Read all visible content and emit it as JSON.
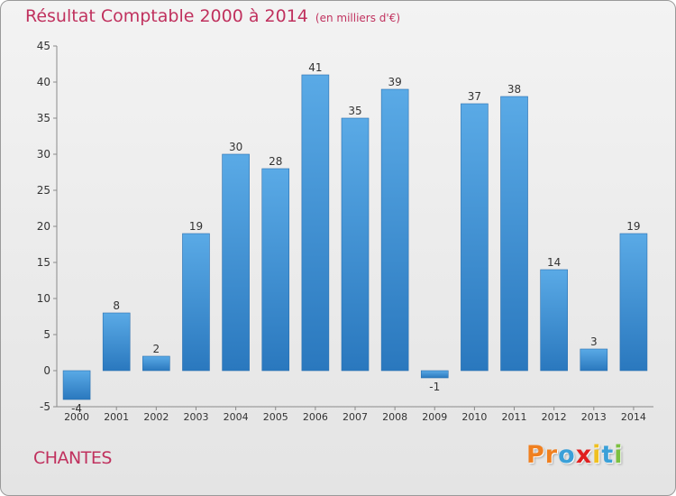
{
  "header": {
    "title": "Résultat Comptable 2000 à 2014",
    "subtitle": "(en milliers d'€)"
  },
  "footer": {
    "city": "CHANTES",
    "logo_letters": [
      "P",
      "r",
      "o",
      "x",
      "i",
      "t",
      "i"
    ]
  },
  "colors": {
    "title": "#c0315e",
    "bar_top": "#5aaae6",
    "bar_bottom": "#2a78be",
    "logo": [
      "#f08020",
      "#f08020",
      "#3aa0d8",
      "#e02020",
      "#f0c020",
      "#3aa0d8",
      "#7cc040"
    ]
  },
  "chart_data": {
    "type": "bar",
    "title": "Résultat Comptable 2000 à 2014",
    "subtitle": "(en milliers d'€)",
    "xlabel": "",
    "ylabel": "",
    "categories": [
      "2000",
      "2001",
      "2002",
      "2003",
      "2004",
      "2005",
      "2006",
      "2007",
      "2008",
      "2009",
      "2010",
      "2011",
      "2012",
      "2013",
      "2014"
    ],
    "values": [
      -4,
      8,
      2,
      19,
      30,
      28,
      41,
      35,
      39,
      -1,
      37,
      38,
      14,
      3,
      19
    ],
    "data_labels": [
      "-4",
      "8",
      "2",
      "19",
      "30",
      "28",
      "41",
      "35",
      "39",
      "-1",
      "37",
      "38",
      "14",
      "3",
      "19"
    ],
    "ylim": [
      -5,
      45
    ],
    "yticks": [
      -5,
      0,
      5,
      10,
      15,
      20,
      25,
      30,
      35,
      40,
      45
    ],
    "grid": false
  }
}
